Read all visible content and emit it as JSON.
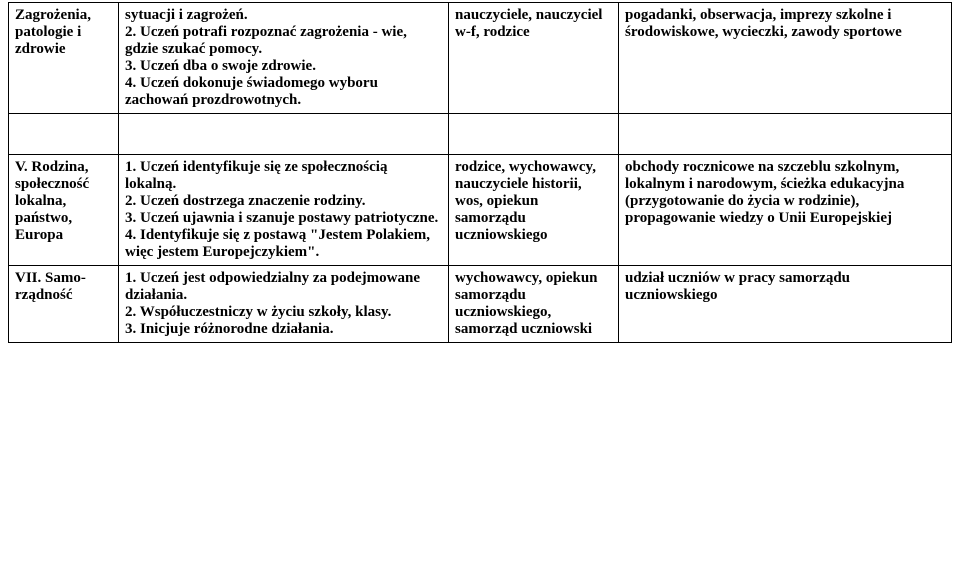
{
  "table": {
    "rows": [
      {
        "c1": "Zagrożenia, patologie i zdrowie",
        "c2": "sytuacji i zagrożeń.\n2. Uczeń potrafi rozpoznać zagrożenia - wie, gdzie szukać pomocy.\n3. Uczeń dba o swoje zdrowie.\n4. Uczeń dokonuje świadomego wyboru zachowań prozdrowotnych.",
        "c3": "nauczyciele, nauczyciel w-f, rodzice",
        "c4": "pogadanki, obserwacja, imprezy szkolne i środowiskowe, wycieczki, zawody sportowe"
      },
      {
        "c1": "V. Rodzina, społeczność lokalna, państwo, Europa",
        "c2": "1. Uczeń identyfikuje się ze społecznością lokalną.\n2. Uczeń dostrzega znaczenie rodziny.\n3. Uczeń ujawnia i szanuje postawy patriotyczne.\n4. Identyfikuje się z postawą \"Jestem Polakiem, więc jestem Europejczykiem\".",
        "c3": "rodzice, wychowawcy, nauczyciele historii, wos, opiekun samorządu uczniowskiego",
        "c4": "obchody rocznicowe na szczeblu szkolnym, lokalnym i narodowym, ścieżka edukacyjna (przygotowanie do życia w rodzinie), propagowanie wiedzy o Unii Europejskiej"
      },
      {
        "c1": "VII. Samo-rządność",
        "c2": "1. Uczeń jest odpowiedzialny za podejmowane działania.\n2. Współuczestniczy w życiu szkoły, klasy.\n3. Inicjuje różnorodne działania.",
        "c3": "wychowawcy, opiekun samorządu uczniowskiego, samorząd uczniowski",
        "c4": "udział uczniów w pracy samorządu uczniowskiego"
      }
    ]
  }
}
